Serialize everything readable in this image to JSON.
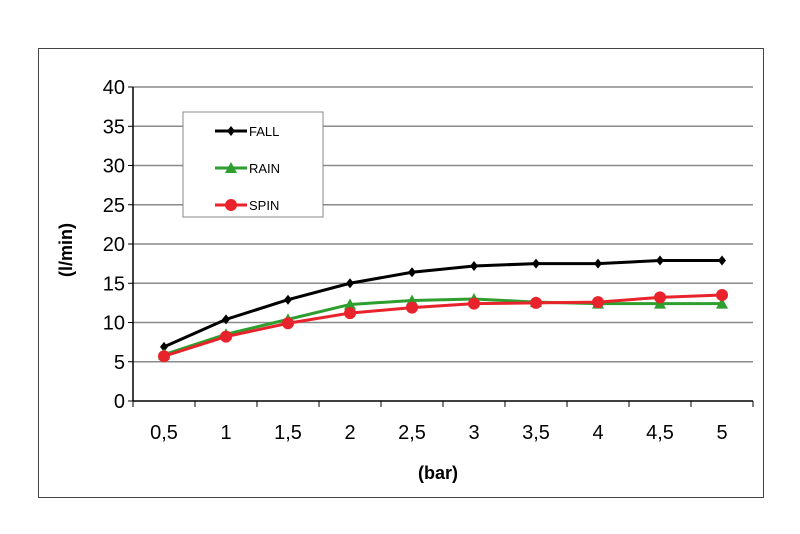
{
  "chart_data": {
    "type": "line",
    "categories": [
      "0,5",
      "1",
      "1,5",
      "2",
      "2,5",
      "3",
      "3,5",
      "4",
      "4,5",
      "5"
    ],
    "series": [
      {
        "name": "FALL",
        "color": "#000000",
        "marker": "diamond",
        "values": [
          6.9,
          10.4,
          12.9,
          15.0,
          16.4,
          17.2,
          17.5,
          17.5,
          17.9,
          17.9
        ]
      },
      {
        "name": "RAIN",
        "color": "#2e9e2e",
        "marker": "triangle",
        "values": [
          5.9,
          8.5,
          10.4,
          12.3,
          12.8,
          13.0,
          12.6,
          12.4,
          12.4,
          12.4
        ]
      },
      {
        "name": "SPIN",
        "color": "#e8232b",
        "marker": "circle",
        "values": [
          5.7,
          8.2,
          9.9,
          11.2,
          11.9,
          12.4,
          12.5,
          12.6,
          13.2,
          13.5
        ]
      }
    ],
    "xlabel": "(bar)",
    "ylabel": "(l/min)",
    "ylim": [
      0,
      40
    ],
    "yticks": [
      "0",
      "5",
      "10",
      "15",
      "20",
      "25",
      "30",
      "35",
      "40"
    ],
    "grid": true,
    "legend": "top-left"
  }
}
